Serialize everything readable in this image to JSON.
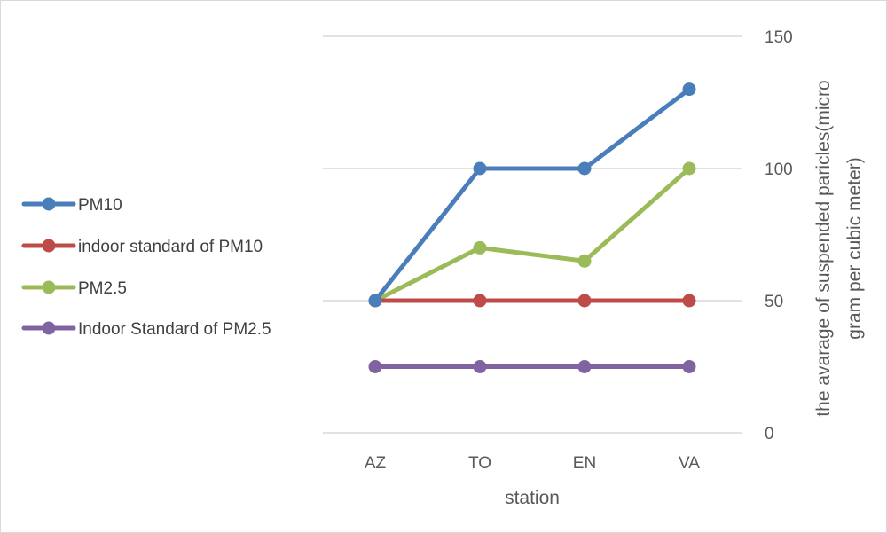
{
  "chart_data": {
    "type": "line",
    "categories": [
      "AZ",
      "TO",
      "EN",
      "VA"
    ],
    "series": [
      {
        "name": "PM10",
        "values": [
          50,
          100,
          100,
          130
        ],
        "color": "#4a7ebb"
      },
      {
        "name": "indoor standard of PM10",
        "values": [
          50,
          50,
          50,
          50
        ],
        "color": "#be4b48"
      },
      {
        "name": "PM2.5",
        "values": [
          50,
          70,
          65,
          100
        ],
        "color": "#9bbb59"
      },
      {
        "name": "Indoor Standard of PM2.5",
        "values": [
          25,
          25,
          25,
          25
        ],
        "color": "#8064a2"
      }
    ],
    "xlabel": "station",
    "ylabel_lines": [
      "the avarage of suspended paricles(micro",
      "gram per cubic meter)"
    ],
    "yticks": [
      0,
      50,
      100,
      150
    ],
    "ylim": [
      0,
      150
    ],
    "y_axis_side": "right",
    "grid": true,
    "legend_position": "left",
    "gridline_color": "#d9d9d9"
  }
}
